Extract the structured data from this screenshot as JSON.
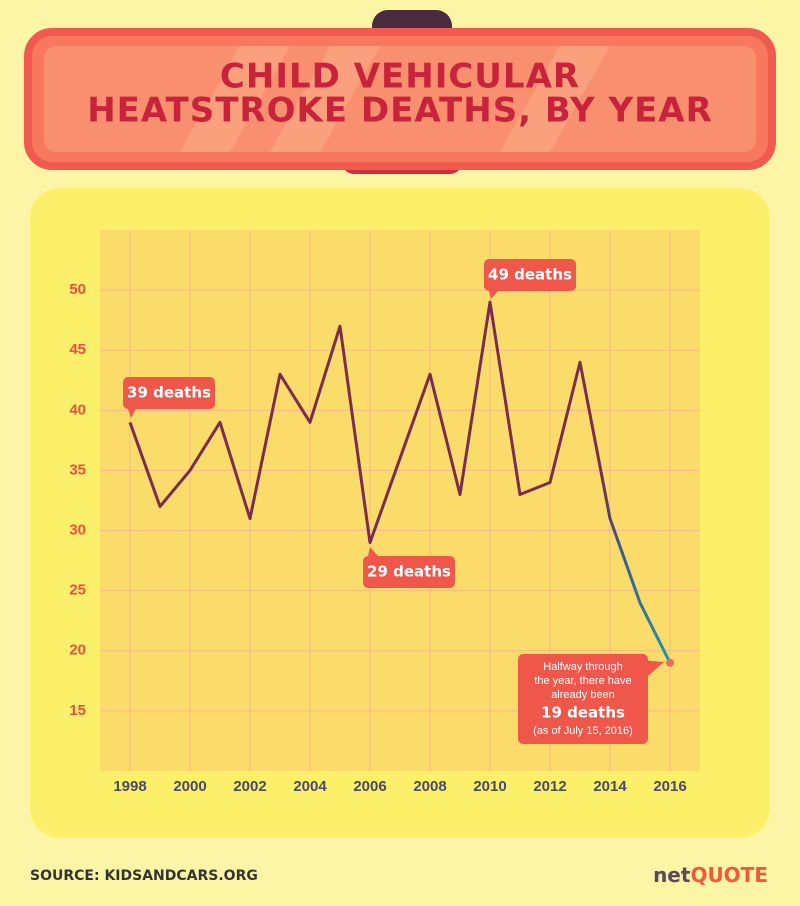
{
  "chart_data": {
    "type": "line",
    "title": [
      "CHILD VEHICULAR",
      "HEATSTROKE DEATHS, BY YEAR"
    ],
    "x": [
      1998,
      1999,
      2000,
      2001,
      2002,
      2003,
      2004,
      2005,
      2006,
      2007,
      2008,
      2009,
      2010,
      2011,
      2012,
      2013,
      2014,
      2015,
      2016
    ],
    "series": [
      {
        "name": "Deaths",
        "color": "#7b2d4e",
        "values": [
          39,
          32,
          35,
          39,
          31,
          43,
          39,
          47,
          29,
          36,
          43,
          33,
          49,
          33,
          34,
          44,
          31,
          24,
          19
        ]
      }
    ],
    "xlim": [
      1997,
      2017
    ],
    "xticks": [
      1998,
      2000,
      2002,
      2004,
      2006,
      2008,
      2010,
      2012,
      2014,
      2016
    ],
    "ylim": [
      10,
      55
    ],
    "yticks": [
      15,
      20,
      25,
      30,
      35,
      40,
      45,
      50
    ],
    "grid": true,
    "annotations": [
      "39 deaths",
      "29 deaths",
      "49 deaths"
    ],
    "final_note": [
      "Halfway through",
      "the year, there have",
      "already been",
      "19 deaths",
      "(as of July 15, 2016)"
    ],
    "source": "SOURCE: KIDSANDCARS.ORG",
    "logo": [
      "net",
      "QUOTE"
    ]
  }
}
